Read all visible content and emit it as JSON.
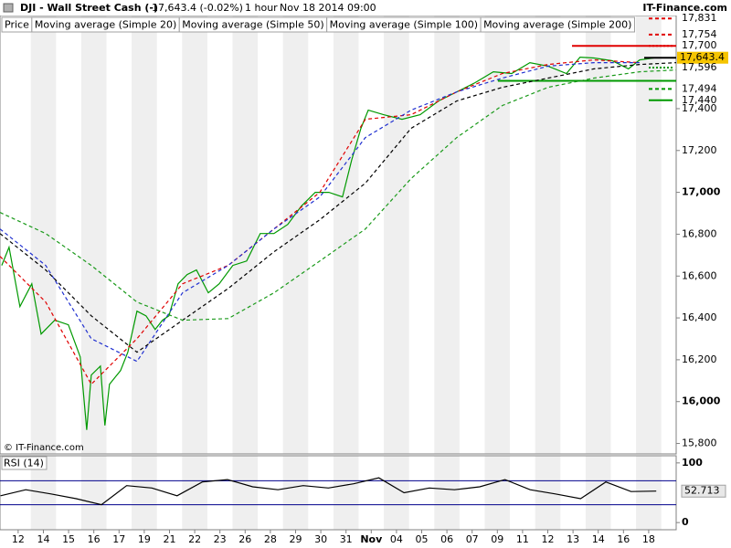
{
  "header": {
    "symbol": "DJI - Wall Street Cash (-)",
    "quote": "17,643.4 (-0.02%)",
    "interval": "1 hour",
    "datetime": "Nov 18 2014 09:00",
    "brand": "IT-Finance.com",
    "watermark": "© IT-Finance.com"
  },
  "chart_data": [
    {
      "type": "line",
      "xlim": [
        -0.72,
        26.09
      ],
      "ylim": [
        15750,
        17845
      ],
      "xticks": [
        {
          "value": 0,
          "label": "12"
        },
        {
          "value": 1,
          "label": "14"
        },
        {
          "value": 2,
          "label": "15"
        },
        {
          "value": 3,
          "label": "16"
        },
        {
          "value": 4,
          "label": "17"
        },
        {
          "value": 5,
          "label": "19"
        },
        {
          "value": 6,
          "label": "21"
        },
        {
          "value": 7,
          "label": "22"
        },
        {
          "value": 8,
          "label": "23"
        },
        {
          "value": 9,
          "label": "26"
        },
        {
          "value": 10,
          "label": "28"
        },
        {
          "value": 11,
          "label": "29"
        },
        {
          "value": 12,
          "label": "30"
        },
        {
          "value": 13,
          "label": "31"
        },
        {
          "value": 14,
          "label": "Nov"
        },
        {
          "value": 15,
          "label": "04"
        },
        {
          "value": 16,
          "label": "05"
        },
        {
          "value": 17,
          "label": "06"
        },
        {
          "value": 18,
          "label": "07"
        },
        {
          "value": 19,
          "label": "09"
        },
        {
          "value": 20,
          "label": "11"
        },
        {
          "value": 21,
          "label": "12"
        },
        {
          "value": 22,
          "label": "13"
        },
        {
          "value": 23,
          "label": "14"
        },
        {
          "value": 24,
          "label": "16"
        },
        {
          "value": 25,
          "label": "18"
        }
      ],
      "yticks": [
        {
          "value": 15800,
          "label": "15,800"
        },
        {
          "value": 16000,
          "label": "16,000"
        },
        {
          "value": 16200,
          "label": "16,200"
        },
        {
          "value": 16400,
          "label": "16,400"
        },
        {
          "value": 16600,
          "label": "16,600"
        },
        {
          "value": 16800,
          "label": "16,800"
        },
        {
          "value": 17000,
          "label": "17,000"
        },
        {
          "value": 17200,
          "label": "17,200"
        },
        {
          "value": 17400,
          "label": "17,400"
        }
      ],
      "series": [
        {
          "name": "Price",
          "color": "#009900",
          "label_color": "#000000",
          "dash": "solid",
          "x": [
            -0.65,
            -0.36,
            0.07,
            0.54,
            0.91,
            1.45,
            1.99,
            2.46,
            2.72,
            2.9,
            3.26,
            3.44,
            3.62,
            4.06,
            4.35,
            4.71,
            5.07,
            5.43,
            5.72,
            5.98,
            6.34,
            6.7,
            7.07,
            7.54,
            7.97,
            8.51,
            9.06,
            9.6,
            10.14,
            10.69,
            11.23,
            11.78,
            12.32,
            12.86,
            13.22,
            13.59,
            13.88,
            14.49,
            15.22,
            15.94,
            16.67,
            17.39,
            18.12,
            18.84,
            19.57,
            20.29,
            21.01,
            21.74,
            22.28,
            22.83,
            23.55,
            24.2,
            24.64,
            25.29
          ],
          "values": [
            16651,
            16738,
            16454,
            16563,
            16323,
            16389,
            16367,
            16214,
            15865,
            16127,
            16170,
            15886,
            16083,
            16148,
            16236,
            16432,
            16410,
            16345,
            16389,
            16410,
            16563,
            16607,
            16629,
            16520,
            16563,
            16651,
            16672,
            16803,
            16803,
            16847,
            16934,
            17000,
            17000,
            16978,
            17153,
            17306,
            17393,
            17371,
            17349,
            17371,
            17437,
            17480,
            17524,
            17576,
            17568,
            17620,
            17603,
            17568,
            17646,
            17642,
            17629,
            17590,
            17633,
            17643.4
          ]
        },
        {
          "name": "Moving average (Simple 20)",
          "color": "#e00000",
          "label_color": "#e00000",
          "dash": "dashed",
          "x": [
            -0.72,
            1.09,
            2.9,
            4.71,
            6.52,
            8.33,
            10.14,
            11.96,
            13.77,
            15.58,
            17.39,
            19.2,
            21.01,
            22.83,
            24.64
          ],
          "values": [
            16694,
            16476,
            16083,
            16301,
            16563,
            16651,
            16825,
            17000,
            17349,
            17371,
            17480,
            17568,
            17611,
            17633,
            17620
          ]
        },
        {
          "name": "Moving average (Simple 50)",
          "color": "#1f2fd0",
          "label_color": "#1f2fd0",
          "dash": "dashed",
          "x": [
            -0.72,
            1.09,
            2.9,
            4.71,
            6.52,
            8.33,
            10.14,
            11.96,
            13.77,
            15.58,
            17.39,
            19.2,
            21.01,
            22.83,
            24.64
          ],
          "values": [
            16825,
            16651,
            16301,
            16192,
            16520,
            16651,
            16825,
            16978,
            17262,
            17393,
            17480,
            17546,
            17603,
            17620,
            17620
          ]
        },
        {
          "name": "Moving average (Simple 100)",
          "color": "#000000",
          "label_color": "#000000",
          "dash": "dashed",
          "x": [
            -0.72,
            1.09,
            2.9,
            4.71,
            6.52,
            8.33,
            10.14,
            11.96,
            13.77,
            15.58,
            17.39,
            19.2,
            21.01,
            22.83,
            24.64,
            26.09
          ],
          "values": [
            16803,
            16629,
            16410,
            16236,
            16389,
            16541,
            16716,
            16869,
            17044,
            17306,
            17437,
            17502,
            17546,
            17590,
            17611,
            17620
          ]
        },
        {
          "name": "Moving average (Simple 200)",
          "color": "#1a9a1a",
          "label_color": "#1a9a1a",
          "dash": "dashed",
          "x": [
            -0.72,
            1.09,
            2.9,
            4.71,
            6.52,
            8.33,
            10.14,
            11.96,
            13.77,
            15.58,
            17.39,
            19.2,
            21.01,
            22.83,
            24.64,
            26.09
          ],
          "values": [
            16904,
            16803,
            16651,
            16476,
            16389,
            16397,
            16520,
            16672,
            16825,
            17066,
            17262,
            17415,
            17502,
            17546,
            17576,
            17585
          ]
        }
      ],
      "lines": [
        {
          "value": 17700,
          "from": 21.96,
          "color": "#e00000"
        },
        {
          "value": 17533,
          "from": 19.02,
          "color": "#009900"
        }
      ],
      "levels": [
        {
          "value": 17831,
          "label": "17,831",
          "color": "#e00000",
          "dash": "dashed"
        },
        {
          "value": 17754,
          "label": "17,754",
          "color": "#e00000",
          "dash": "dashed"
        },
        {
          "value": 17700,
          "label": "17,700",
          "color": "#e00000",
          "dash": "dotted"
        },
        {
          "value": 17643.4,
          "label": "17,643.4",
          "color": "#f5c400",
          "dash": "box"
        },
        {
          "value": 17596,
          "label": "17,596",
          "color": "#009900",
          "dash": "dotted"
        },
        {
          "value": 17494,
          "label": "17,494",
          "color": "#009900",
          "dash": "dashed"
        },
        {
          "value": 17440,
          "label": "17,440",
          "color": "#009900",
          "dash": "solid"
        }
      ]
    },
    {
      "type": "line",
      "xlim": [
        -0.72,
        26.09
      ],
      "ylim": [
        -12,
        112
      ],
      "yticks": [
        0,
        100
      ],
      "levels": [
        30,
        70
      ],
      "level_color": "#00008b",
      "series": [
        {
          "name": "RSI (14)",
          "color": "#000000",
          "x": [
            -0.7,
            0.3,
            1.3,
            2.3,
            3.3,
            4.3,
            5.3,
            6.3,
            7.3,
            8.3,
            9.3,
            10.3,
            11.3,
            12.3,
            13.3,
            14.3,
            15.3,
            16.3,
            17.3,
            18.3,
            19.3,
            20.3,
            21.3,
            22.3,
            23.3,
            24.3,
            25.3
          ],
          "values": [
            45,
            55,
            48,
            40,
            30,
            62,
            58,
            45,
            68,
            72,
            60,
            55,
            62,
            58,
            65,
            75,
            50,
            58,
            55,
            60,
            72,
            55,
            48,
            40,
            68,
            52,
            52.713
          ]
        }
      ],
      "last_label": {
        "value": 52.713,
        "label": "52.713"
      }
    }
  ]
}
